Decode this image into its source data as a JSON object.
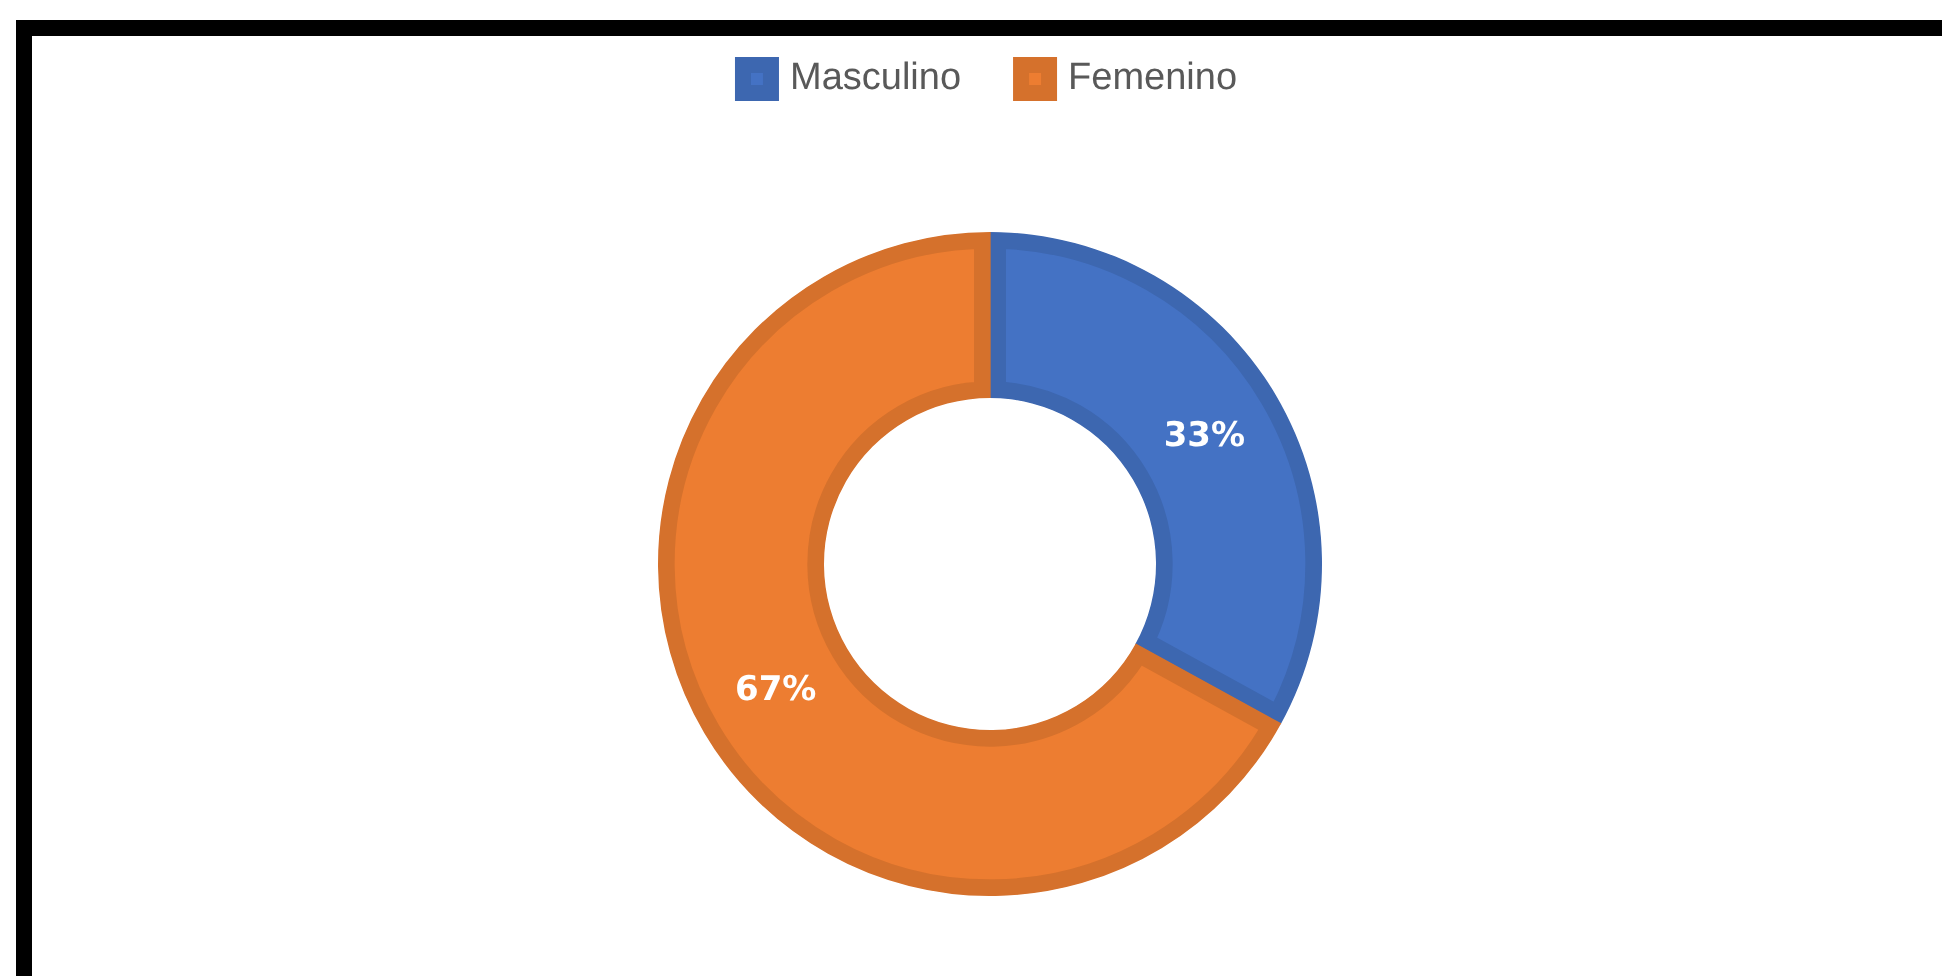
{
  "chart_data": {
    "type": "donut",
    "categories": [
      "Masculino",
      "Femenino"
    ],
    "values": [
      33,
      67
    ],
    "colors": [
      "#4472c4",
      "#ed7d31"
    ],
    "legend": "top",
    "value_labels": [
      "33%",
      "67%"
    ]
  }
}
